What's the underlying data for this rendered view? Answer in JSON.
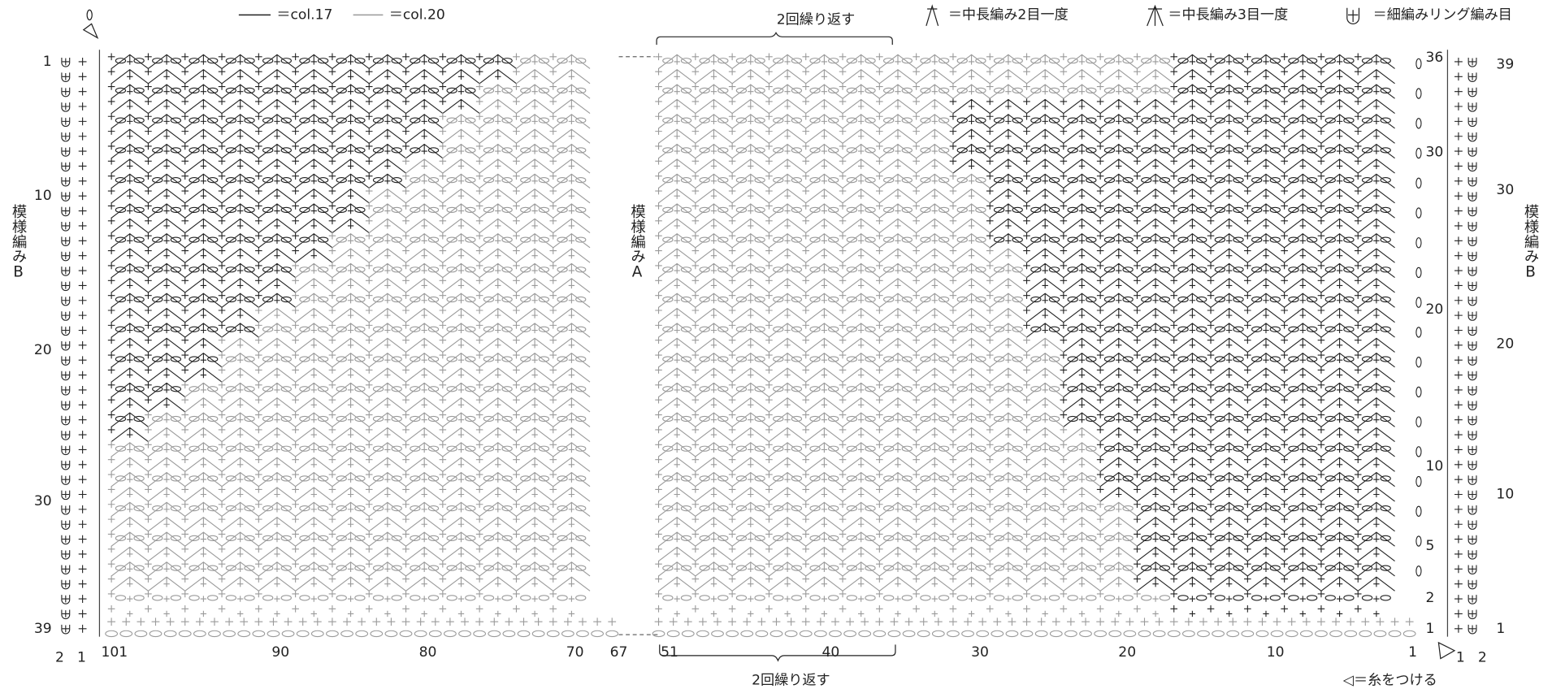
{
  "legend": {
    "col17": "＝col.17",
    "col20": "＝col.20",
    "dec2": "＝中長編み2目一度",
    "dec3": "＝中長編み3目一度",
    "ring": "＝細編みリング編み目",
    "join": "◁＝糸をつける"
  },
  "repeat_top": "2回繰り返す",
  "repeat_bottom": "2回繰り返す",
  "pattern_left": "模様編みB",
  "pattern_center": "模様編みA",
  "pattern_right": "模様編みB",
  "left_rows": [
    1,
    10,
    20,
    30,
    39
  ],
  "left_bottom": [
    2,
    1
  ],
  "stitch_numbers": [
    101,
    90,
    80,
    70,
    67,
    51,
    40,
    30,
    20,
    10,
    1
  ],
  "right_rows": [
    36,
    30,
    20,
    10,
    5,
    2,
    1
  ],
  "right_outer_rows": [
    39,
    30,
    20,
    10,
    1
  ],
  "right_bottom": [
    1,
    2
  ]
}
